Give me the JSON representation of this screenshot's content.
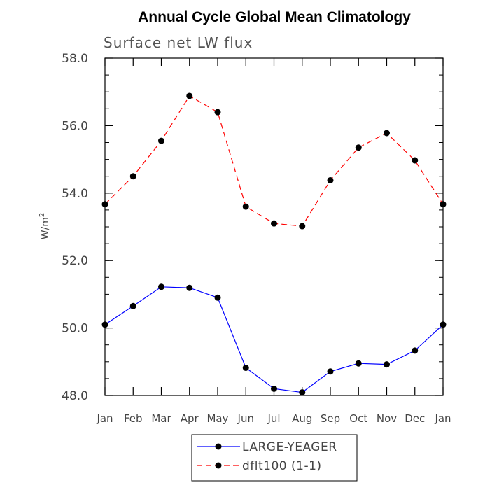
{
  "chart_data": {
    "type": "line",
    "title": "Annual Cycle Global Mean Climatology",
    "subtitle": "Surface net LW flux",
    "ylabel": "W/m",
    "ylabel_superscript": "2",
    "xlabel": "",
    "categories": [
      "Jan",
      "Feb",
      "Mar",
      "Apr",
      "May",
      "Jun",
      "Jul",
      "Aug",
      "Sep",
      "Oct",
      "Nov",
      "Dec",
      "Jan"
    ],
    "ylim": [
      48.0,
      58.0
    ],
    "y_ticks": [
      48.0,
      50.0,
      52.0,
      54.0,
      56.0,
      58.0
    ],
    "y_tick_labels": [
      "48.0",
      "50.0",
      "52.0",
      "54.0",
      "56.0",
      "58.0"
    ],
    "y_minor_step": 0.5,
    "grid": false,
    "legend_position": "bottom-center",
    "series": [
      {
        "name": "LARGE-YEAGER",
        "color": "#0000ff",
        "line_style": "solid",
        "marker": "filled-circle",
        "values": [
          50.1,
          50.65,
          51.22,
          51.19,
          50.9,
          48.82,
          48.2,
          48.09,
          48.71,
          48.95,
          48.92,
          49.33,
          50.1
        ]
      },
      {
        "name": "dflt100 (1-1)",
        "color": "#ff0000",
        "line_style": "dashed",
        "marker": "filled-circle",
        "values": [
          53.67,
          54.5,
          55.55,
          56.88,
          56.4,
          53.6,
          53.1,
          53.02,
          54.38,
          55.35,
          55.78,
          54.97,
          53.67
        ]
      }
    ]
  }
}
